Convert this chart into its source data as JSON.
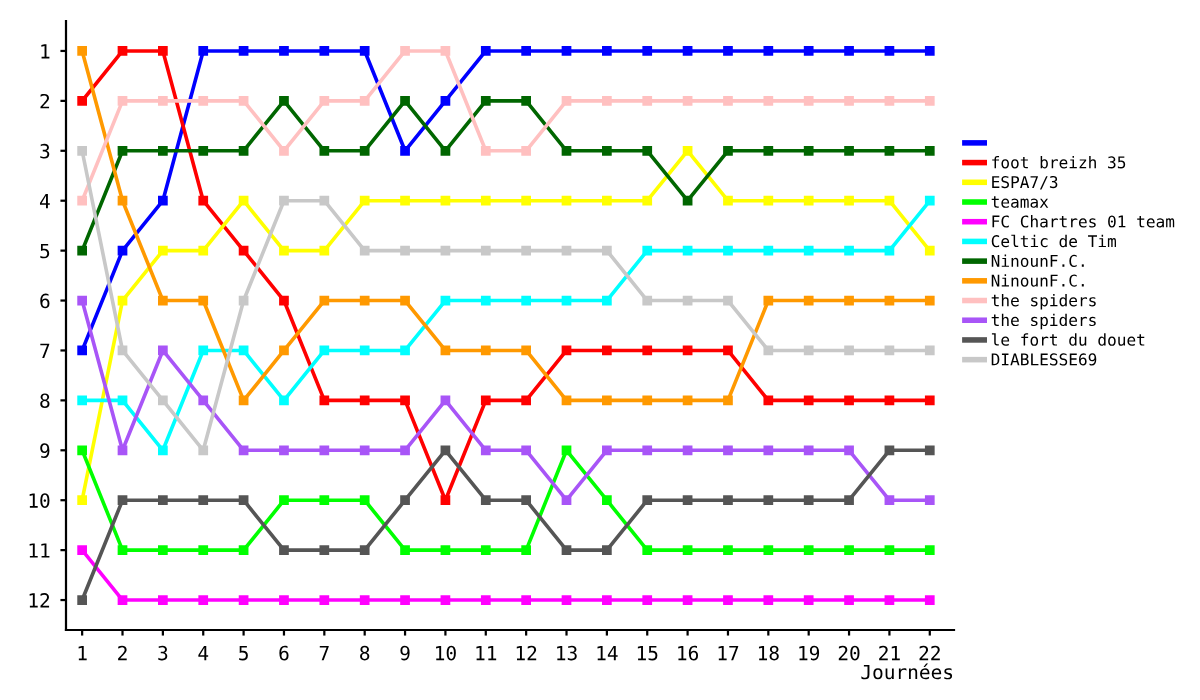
{
  "chart_data": {
    "type": "line",
    "xlabel": "Journées",
    "x": [
      1,
      2,
      3,
      4,
      5,
      6,
      7,
      8,
      9,
      10,
      11,
      12,
      13,
      14,
      15,
      16,
      17,
      18,
      19,
      20,
      21,
      22
    ],
    "xlim": [
      0.6,
      22.6
    ],
    "xticks": [
      1,
      2,
      3,
      4,
      5,
      6,
      7,
      8,
      9,
      10,
      11,
      12,
      13,
      14,
      15,
      16,
      17,
      18,
      19,
      20,
      21,
      22
    ],
    "ylim": [
      12.6,
      0.4
    ],
    "yticks": [
      1,
      2,
      3,
      4,
      5,
      6,
      7,
      8,
      9,
      10,
      11,
      12
    ],
    "grid": false,
    "legend": "right",
    "marker": "square",
    "line_style": "solid",
    "series": [
      {
        "color": "#0000ff",
        "values": [
          7,
          5,
          4,
          1,
          1,
          1,
          1,
          1,
          3,
          2,
          1,
          1,
          1,
          1,
          1,
          1,
          1,
          1,
          1,
          1,
          1,
          1
        ]
      },
      {
        "name": "foot breizh 35",
        "color": "#ff0000",
        "values": [
          2,
          1,
          1,
          4,
          5,
          6,
          8,
          8,
          8,
          10,
          8,
          8,
          7,
          7,
          7,
          7,
          7,
          8,
          8,
          8,
          8,
          8
        ]
      },
      {
        "name": "ESPA7/3",
        "color": "#ffff00",
        "values": [
          10,
          6,
          5,
          5,
          4,
          5,
          5,
          4,
          4,
          4,
          4,
          4,
          4,
          4,
          4,
          3,
          4,
          4,
          4,
          4,
          4,
          5
        ]
      },
      {
        "name": "teamax",
        "color": "#00ff00",
        "values": [
          9,
          11,
          11,
          11,
          11,
          10,
          10,
          10,
          11,
          11,
          11,
          11,
          9,
          10,
          11,
          11,
          11,
          11,
          11,
          11,
          11,
          11
        ]
      },
      {
        "name": "FC Chartres 01 team",
        "color": "#ff00ff",
        "values": [
          11,
          12,
          12,
          12,
          12,
          12,
          12,
          12,
          12,
          12,
          12,
          12,
          12,
          12,
          12,
          12,
          12,
          12,
          12,
          12,
          12,
          12
        ]
      },
      {
        "name": "Celtic de Tim",
        "color": "#00ffff",
        "values": [
          8,
          8,
          9,
          7,
          7,
          8,
          7,
          7,
          7,
          6,
          6,
          6,
          6,
          6,
          5,
          5,
          5,
          5,
          5,
          5,
          5,
          4
        ]
      },
      {
        "name": "NinounF.C.",
        "color": "#006600",
        "values": [
          5,
          3,
          3,
          3,
          3,
          2,
          3,
          3,
          2,
          3,
          2,
          2,
          3,
          3,
          3,
          4,
          3,
          3,
          3,
          3,
          3,
          3
        ]
      },
      {
        "name": "NinounF.C.",
        "color": "#ff9900",
        "values": [
          1,
          4,
          6,
          6,
          8,
          7,
          6,
          6,
          6,
          7,
          7,
          7,
          8,
          8,
          8,
          8,
          8,
          6,
          6,
          6,
          6,
          6
        ]
      },
      {
        "name": "the spiders",
        "color": "#ffc0c0",
        "values": [
          4,
          2,
          2,
          2,
          2,
          3,
          2,
          2,
          1,
          1,
          3,
          3,
          2,
          2,
          2,
          2,
          2,
          2,
          2,
          2,
          2,
          2
        ]
      },
      {
        "name": "the spiders",
        "color": "#a855f7",
        "values": [
          6,
          9,
          7,
          8,
          9,
          9,
          9,
          9,
          9,
          8,
          9,
          9,
          10,
          9,
          9,
          9,
          9,
          9,
          9,
          9,
          10,
          10
        ]
      },
      {
        "name": "le fort du douet",
        "color": "#555555",
        "values": [
          12,
          10,
          10,
          10,
          10,
          11,
          11,
          11,
          10,
          9,
          10,
          10,
          11,
          11,
          10,
          10,
          10,
          10,
          10,
          10,
          9,
          9
        ]
      },
      {
        "name": "DIABLESSE69",
        "color": "#c8c8c8",
        "values": [
          3,
          7,
          8,
          9,
          6,
          4,
          4,
          5,
          5,
          5,
          5,
          5,
          5,
          5,
          6,
          6,
          6,
          7,
          7,
          7,
          7,
          7
        ]
      }
    ]
  }
}
